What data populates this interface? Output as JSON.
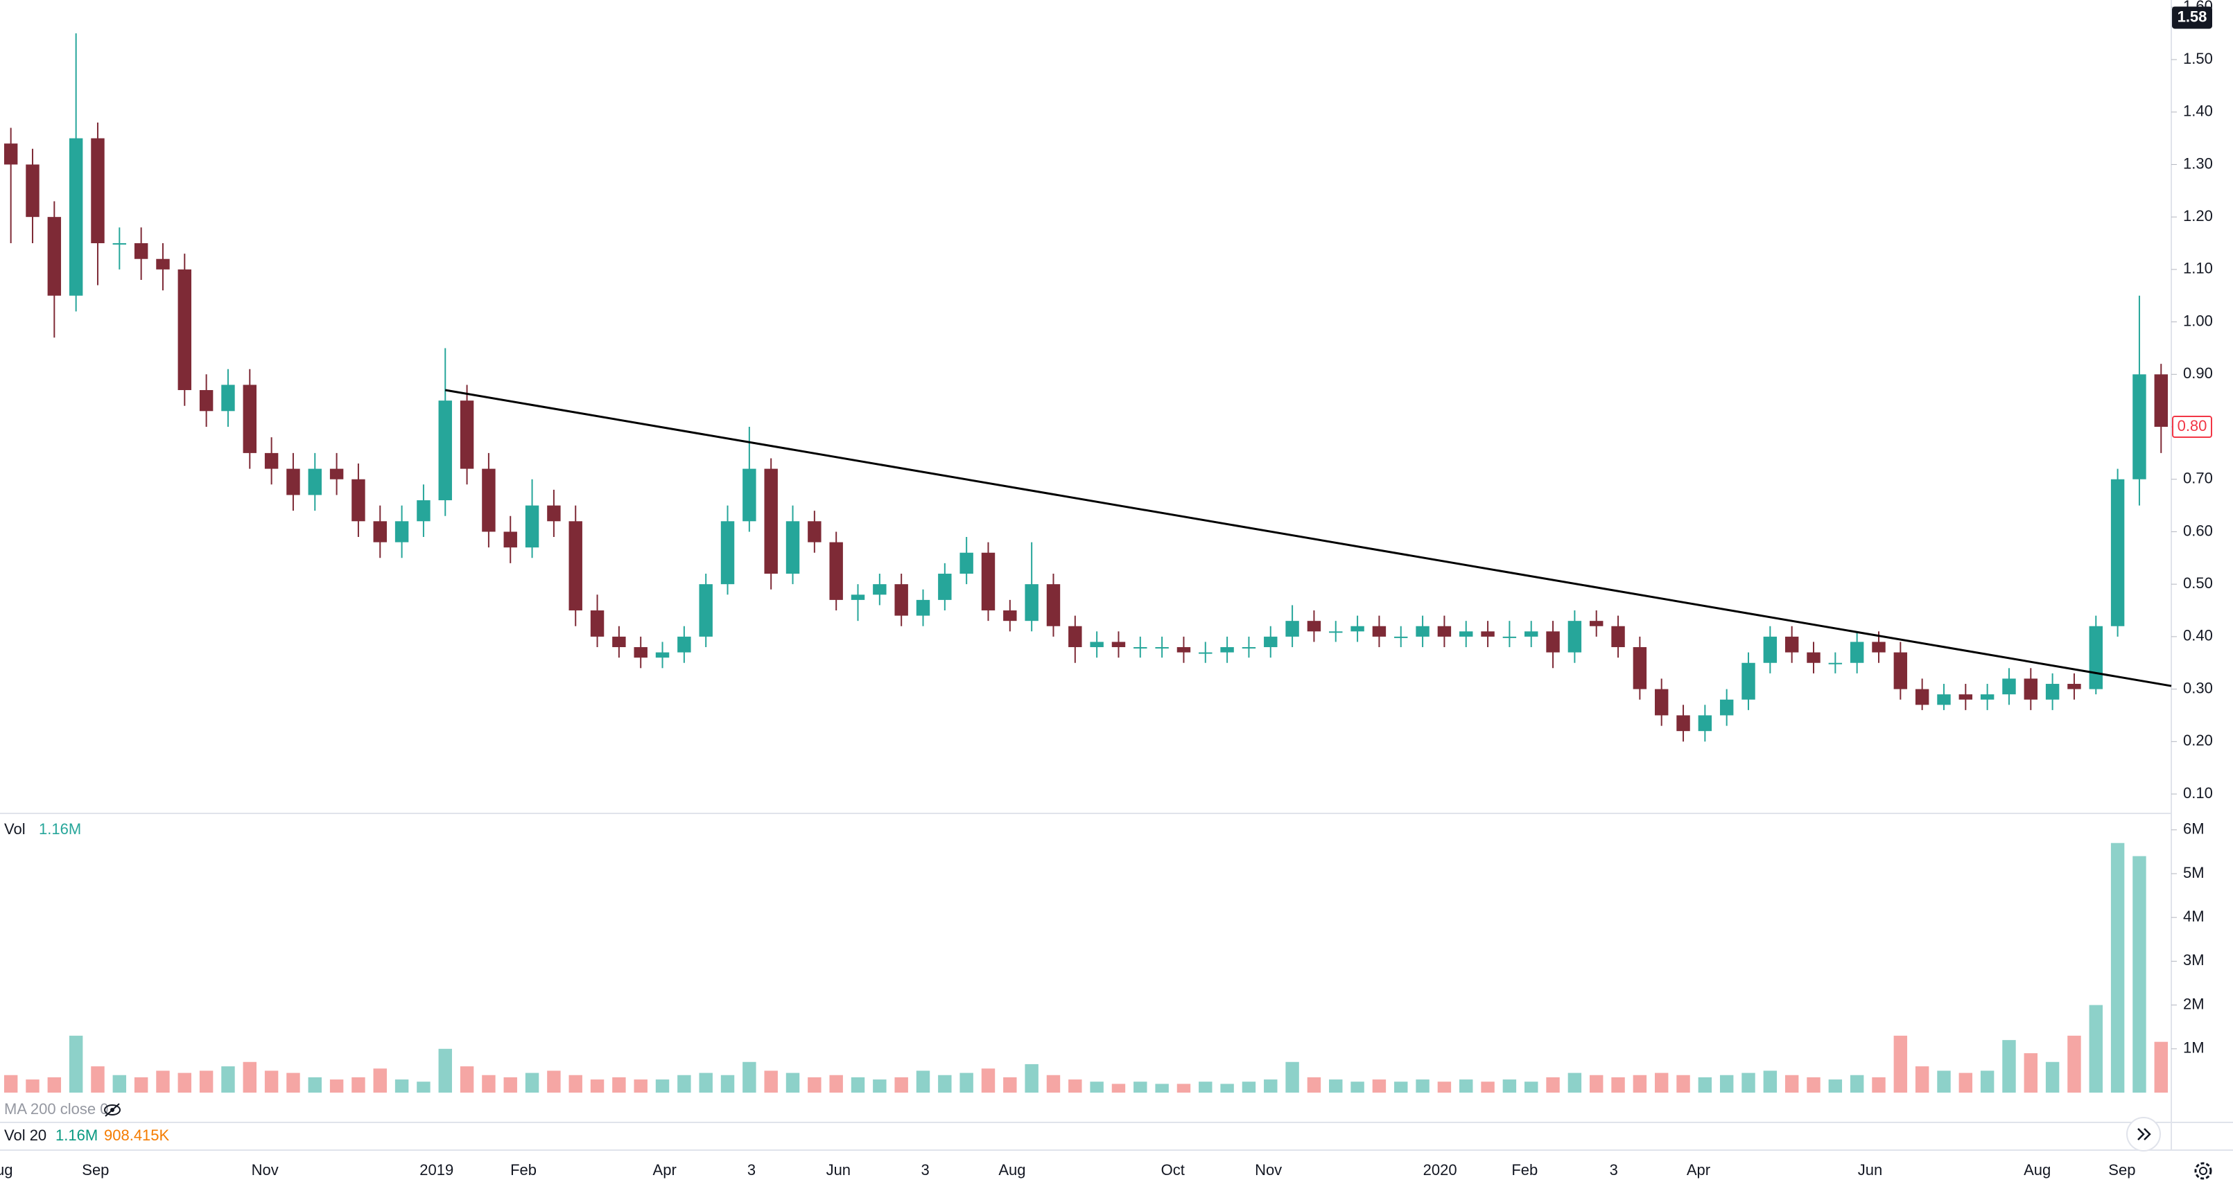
{
  "chart_data": {
    "type": "candlestick",
    "xlim": [
      -0.5,
      99.47
    ],
    "xticks": [
      {
        "value": -0.3,
        "label": "ug"
      },
      {
        "value": 3.9,
        "label": "Sep"
      },
      {
        "value": 11.7,
        "label": "Nov"
      },
      {
        "value": 19.6,
        "label": "2019"
      },
      {
        "value": 23.6,
        "label": "Feb"
      },
      {
        "value": 30.1,
        "label": "Apr"
      },
      {
        "value": 34.1,
        "label": "3"
      },
      {
        "value": 38.1,
        "label": "Jun"
      },
      {
        "value": 42.1,
        "label": "3"
      },
      {
        "value": 46.1,
        "label": "Aug"
      },
      {
        "value": 53.5,
        "label": "Oct"
      },
      {
        "value": 57.9,
        "label": "Nov"
      },
      {
        "value": 65.8,
        "label": "2020"
      },
      {
        "value": 69.7,
        "label": "Feb"
      },
      {
        "value": 73.8,
        "label": "3"
      },
      {
        "value": 77.7,
        "label": "Apr"
      },
      {
        "value": 85.6,
        "label": "Jun"
      },
      {
        "value": 93.3,
        "label": "Aug"
      },
      {
        "value": 97.2,
        "label": "Sep"
      }
    ],
    "ylim": [
      0.0657,
      1.6136
    ],
    "yticks": [
      {
        "value": 0.1,
        "label": "0.10"
      },
      {
        "value": 0.2,
        "label": "0.20"
      },
      {
        "value": 0.3,
        "label": "0.30"
      },
      {
        "value": 0.4,
        "label": "0.40"
      },
      {
        "value": 0.5,
        "label": "0.50"
      },
      {
        "value": 0.6,
        "label": "0.60"
      },
      {
        "value": 0.7,
        "label": "0.70"
      },
      {
        "value": 0.8,
        "label": "0.80"
      },
      {
        "value": 0.9,
        "label": "0.90"
      },
      {
        "value": 1.0,
        "label": "1.00"
      },
      {
        "value": 1.1,
        "label": "1.10"
      },
      {
        "value": 1.2,
        "label": "1.20"
      },
      {
        "value": 1.3,
        "label": "1.30"
      },
      {
        "value": 1.4,
        "label": "1.40"
      },
      {
        "value": 1.5,
        "label": "1.50"
      },
      {
        "value": 1.6,
        "label": "1.60"
      }
    ],
    "open": [
      1.34,
      1.3,
      1.2,
      1.05,
      1.35,
      1.15,
      1.15,
      1.12,
      1.1,
      0.87,
      0.83,
      0.88,
      0.75,
      0.72,
      0.67,
      0.72,
      0.7,
      0.62,
      0.58,
      0.62,
      0.66,
      0.85,
      0.72,
      0.6,
      0.57,
      0.65,
      0.62,
      0.45,
      0.4,
      0.38,
      0.36,
      0.37,
      0.4,
      0.5,
      0.62,
      0.72,
      0.52,
      0.62,
      0.58,
      0.47,
      0.48,
      0.5,
      0.44,
      0.47,
      0.52,
      0.56,
      0.45,
      0.43,
      0.5,
      0.42,
      0.38,
      0.39,
      0.38,
      0.38,
      0.38,
      0.37,
      0.37,
      0.38,
      0.38,
      0.4,
      0.43,
      0.41,
      0.41,
      0.42,
      0.4,
      0.4,
      0.42,
      0.4,
      0.41,
      0.4,
      0.4,
      0.41,
      0.37,
      0.43,
      0.42,
      0.38,
      0.3,
      0.25,
      0.22,
      0.25,
      0.28,
      0.35,
      0.4,
      0.37,
      0.35,
      0.35,
      0.39,
      0.37,
      0.3,
      0.27,
      0.29,
      0.28,
      0.29,
      0.32,
      0.28,
      0.31,
      0.3,
      0.42,
      0.7,
      0.9
    ],
    "high": [
      1.37,
      1.33,
      1.23,
      1.55,
      1.38,
      1.18,
      1.18,
      1.15,
      1.13,
      0.9,
      0.91,
      0.91,
      0.78,
      0.75,
      0.75,
      0.75,
      0.73,
      0.65,
      0.65,
      0.69,
      0.95,
      0.88,
      0.75,
      0.63,
      0.7,
      0.68,
      0.65,
      0.48,
      0.42,
      0.4,
      0.39,
      0.42,
      0.52,
      0.65,
      0.8,
      0.74,
      0.65,
      0.64,
      0.6,
      0.5,
      0.52,
      0.52,
      0.49,
      0.54,
      0.59,
      0.58,
      0.47,
      0.58,
      0.52,
      0.44,
      0.41,
      0.41,
      0.4,
      0.4,
      0.4,
      0.39,
      0.4,
      0.4,
      0.42,
      0.46,
      0.45,
      0.43,
      0.44,
      0.44,
      0.42,
      0.44,
      0.44,
      0.43,
      0.43,
      0.43,
      0.43,
      0.43,
      0.45,
      0.45,
      0.44,
      0.4,
      0.32,
      0.27,
      0.27,
      0.3,
      0.37,
      0.42,
      0.42,
      0.39,
      0.37,
      0.41,
      0.41,
      0.39,
      0.32,
      0.31,
      0.31,
      0.31,
      0.34,
      0.34,
      0.33,
      0.33,
      0.44,
      0.72,
      1.05,
      0.92
    ],
    "low": [
      1.15,
      1.15,
      0.97,
      1.02,
      1.07,
      1.1,
      1.08,
      1.06,
      0.84,
      0.8,
      0.8,
      0.72,
      0.69,
      0.64,
      0.64,
      0.67,
      0.59,
      0.55,
      0.55,
      0.59,
      0.63,
      0.69,
      0.57,
      0.54,
      0.55,
      0.59,
      0.42,
      0.38,
      0.36,
      0.34,
      0.34,
      0.35,
      0.38,
      0.48,
      0.6,
      0.49,
      0.5,
      0.56,
      0.45,
      0.43,
      0.46,
      0.42,
      0.42,
      0.45,
      0.5,
      0.43,
      0.41,
      0.41,
      0.4,
      0.35,
      0.36,
      0.36,
      0.36,
      0.36,
      0.35,
      0.35,
      0.35,
      0.36,
      0.36,
      0.38,
      0.39,
      0.39,
      0.39,
      0.38,
      0.38,
      0.38,
      0.38,
      0.38,
      0.38,
      0.38,
      0.38,
      0.34,
      0.35,
      0.4,
      0.36,
      0.28,
      0.23,
      0.2,
      0.2,
      0.23,
      0.26,
      0.33,
      0.35,
      0.33,
      0.33,
      0.33,
      0.35,
      0.28,
      0.26,
      0.26,
      0.26,
      0.26,
      0.27,
      0.26,
      0.26,
      0.28,
      0.29,
      0.4,
      0.65,
      0.75
    ],
    "close": [
      1.3,
      1.2,
      1.05,
      1.35,
      1.15,
      1.15,
      1.12,
      1.1,
      0.87,
      0.83,
      0.88,
      0.75,
      0.72,
      0.67,
      0.72,
      0.7,
      0.62,
      0.58,
      0.62,
      0.66,
      0.85,
      0.72,
      0.6,
      0.57,
      0.65,
      0.62,
      0.45,
      0.4,
      0.38,
      0.36,
      0.37,
      0.4,
      0.5,
      0.62,
      0.72,
      0.52,
      0.62,
      0.58,
      0.47,
      0.48,
      0.5,
      0.44,
      0.47,
      0.52,
      0.56,
      0.45,
      0.43,
      0.5,
      0.42,
      0.38,
      0.39,
      0.38,
      0.38,
      0.38,
      0.37,
      0.37,
      0.38,
      0.38,
      0.4,
      0.43,
      0.41,
      0.41,
      0.42,
      0.4,
      0.4,
      0.42,
      0.4,
      0.41,
      0.4,
      0.4,
      0.41,
      0.37,
      0.43,
      0.42,
      0.38,
      0.3,
      0.25,
      0.22,
      0.25,
      0.28,
      0.35,
      0.4,
      0.37,
      0.35,
      0.35,
      0.39,
      0.37,
      0.3,
      0.27,
      0.29,
      0.28,
      0.29,
      0.32,
      0.28,
      0.31,
      0.3,
      0.42,
      0.7,
      0.9,
      0.8
    ],
    "up_color": "#26a69a",
    "down_color": "#7e2a36",
    "trendline": {
      "x": [
        20,
        99.47
      ],
      "y": [
        0.87,
        0.306
      ],
      "color": "#000000"
    },
    "price_labels": [
      {
        "value": 1.58,
        "label": "1.58",
        "style": "dark"
      },
      {
        "value": 0.8,
        "label": "0.80",
        "style": "last"
      }
    ],
    "volume": {
      "values": [
        400000,
        300000,
        350000,
        1300000,
        600000,
        400000,
        350000,
        500000,
        450000,
        500000,
        600000,
        700000,
        500000,
        450000,
        350000,
        300000,
        350000,
        550000,
        300000,
        250000,
        1000000,
        600000,
        400000,
        350000,
        450000,
        500000,
        400000,
        300000,
        350000,
        300000,
        300000,
        400000,
        450000,
        400000,
        700000,
        500000,
        450000,
        350000,
        400000,
        350000,
        300000,
        350000,
        500000,
        400000,
        450000,
        550000,
        350000,
        650000,
        400000,
        300000,
        250000,
        200000,
        250000,
        200000,
        200000,
        250000,
        200000,
        250000,
        300000,
        700000,
        350000,
        300000,
        250000,
        300000,
        250000,
        300000,
        250000,
        300000,
        250000,
        300000,
        250000,
        350000,
        450000,
        400000,
        350000,
        400000,
        450000,
        400000,
        350000,
        400000,
        450000,
        500000,
        400000,
        350000,
        300000,
        400000,
        350000,
        1300000,
        600000,
        500000,
        450000,
        500000,
        1200000,
        900000,
        700000,
        1300000,
        2000000,
        5700000,
        5400000,
        1160000
      ],
      "ylim": [
        0,
        6360000
      ],
      "yticks": [
        {
          "value": 1000000,
          "label": "1M"
        },
        {
          "value": 2000000,
          "label": "2M"
        },
        {
          "value": 3000000,
          "label": "3M"
        },
        {
          "value": 4000000,
          "label": "4M"
        },
        {
          "value": 5000000,
          "label": "5M"
        },
        {
          "value": 6000000,
          "label": "6M"
        }
      ],
      "up_color": "#8dd1c9",
      "down_color": "#f5a6a4"
    },
    "legend": {
      "vol": "Vol",
      "vol_value": "1.16M",
      "ma": "MA 200 close 0",
      "vol20": "Vol 20",
      "vol20_value": "1.16M",
      "vol20_ma": "908.415K"
    }
  }
}
